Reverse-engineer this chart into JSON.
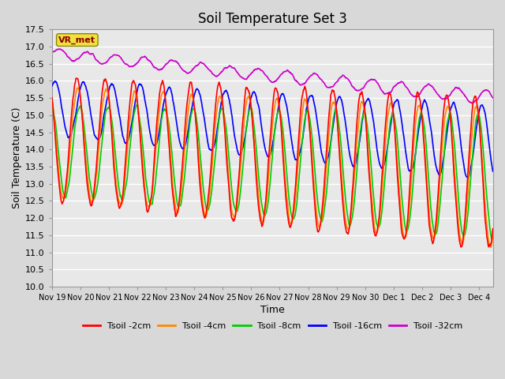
{
  "title": "Soil Temperature Set 3",
  "xlabel": "Time",
  "ylabel": "Soil Temperature (C)",
  "ylim": [
    10.0,
    17.5
  ],
  "yticks": [
    10.0,
    10.5,
    11.0,
    11.5,
    12.0,
    12.5,
    13.0,
    13.5,
    14.0,
    14.5,
    15.0,
    15.5,
    16.0,
    16.5,
    17.0,
    17.5
  ],
  "series": [
    {
      "label": "Tsoil -2cm",
      "color": "#ff0000"
    },
    {
      "label": "Tsoil -4cm",
      "color": "#ff8800"
    },
    {
      "label": "Tsoil -8cm",
      "color": "#00cc00"
    },
    {
      "label": "Tsoil -16cm",
      "color": "#0000ff"
    },
    {
      "label": "Tsoil -32cm",
      "color": "#cc00cc"
    }
  ],
  "vr_met_label": "VR_met",
  "bg_color": "#d8d8d8",
  "plot_bg_color": "#e8e8e8",
  "xtick_labels": [
    "Nov 19",
    "Nov 20",
    "Nov 21",
    "Nov 22",
    "Nov 23",
    "Nov 24",
    "Nov 25",
    "Nov 26",
    "Nov 27",
    "Nov 28",
    "Nov 29",
    "Nov 30",
    "Dec 1",
    "Dec 2",
    "Dec 3",
    "Dec 4"
  ],
  "n_days": 15.5
}
